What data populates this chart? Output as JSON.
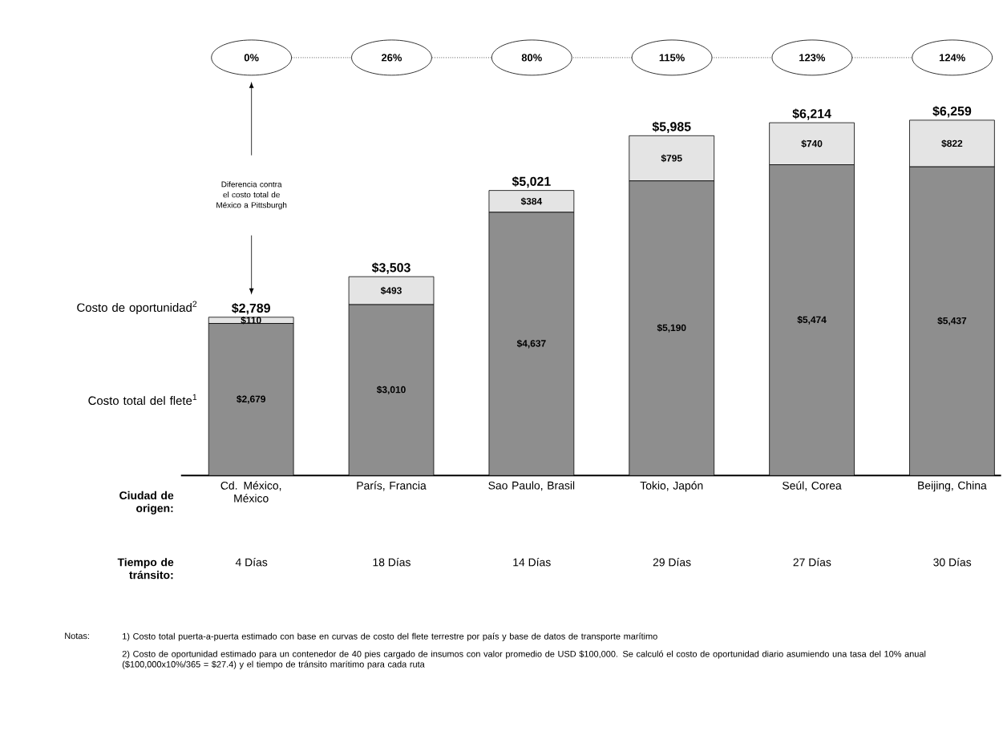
{
  "chart_data": {
    "type": "bar",
    "stacked": true,
    "categories": [
      "Cd. México, México",
      "París, Francia",
      "Sao Paulo, Brasil",
      "Tokio, Japón",
      "Seúl, Corea",
      "Beijing, China"
    ],
    "series": [
      {
        "name": "Costo total del flete$^{1}$",
        "color": "#8e8e8e",
        "values": [
          2679,
          3010,
          4637,
          5190,
          5474,
          5437
        ],
        "value_labels": [
          "$2,679",
          "$3,010",
          "$4,637",
          "$5,190",
          "$5,474",
          "$5,437"
        ]
      },
      {
        "name": "Costo de oportunidad$^{2}$",
        "color": "#e4e4e4",
        "values": [
          110,
          493,
          384,
          795,
          740,
          822
        ],
        "value_labels": [
          "$110",
          "$493",
          "$384",
          "$795",
          "$740",
          "$822"
        ]
      }
    ],
    "totals": [
      "$2,789",
      "$3,503",
      "$5,021",
      "$5,985",
      "$6,214",
      "$6,259"
    ],
    "annotations": [
      "0%",
      "26%",
      "80%",
      "115%",
      "123%",
      "124%",
      "Diferencia contra el costo total de México a Pittsburgh",
      "Ciudad de origen:",
      "Tiempo de tránsito:",
      "4 Días",
      "18 Días",
      "14 Días",
      "29 Días",
      "27 Días",
      "30 Días",
      "Notas:",
      "1) Costo total puerta-a-puerta estimado con base en curvas de costo del flete terrestre por país y base de datos de transporte marítimo",
      "2) Costo de oportunidad estimado para un contenedor de 40 pies cargado de insumos con valor promedio de USD $100,000. Se calculó el costo de oportunidad diario asumiendo una tasa del 10% anual ($100,000x10%/365 = $27.4) y el tiempo de tránsito marítimo para cada ruta"
    ]
  }
}
